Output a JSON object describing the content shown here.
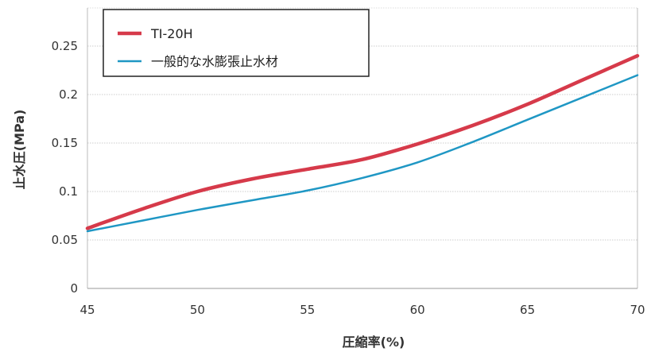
{
  "chart_data": {
    "type": "line",
    "xlabel": "圧縮率(%)",
    "ylabel": "止水圧(MPa)",
    "xlim": [
      45,
      70
    ],
    "ylim": [
      0,
      0.25
    ],
    "x_ticks": [
      "45",
      "50",
      "55",
      "60",
      "65",
      "70"
    ],
    "y_ticks": [
      "0",
      "0.05",
      "0.1",
      "0.15",
      "0.2",
      "0.25"
    ],
    "grid": "horizontal",
    "legend_position": "top-left",
    "series": [
      {
        "name": "TI-20H",
        "color": "#d63a4a",
        "x": [
          45,
          47.5,
          50,
          52.5,
          55,
          57.5,
          60,
          62.5,
          65,
          67.5,
          70
        ],
        "y": [
          0.062,
          0.082,
          0.1,
          0.113,
          0.123,
          0.133,
          0.149,
          0.168,
          0.19,
          0.215,
          0.24
        ]
      },
      {
        "name": "一般的な水膨張止水材",
        "color": "#1f97c4",
        "x": [
          45,
          47.5,
          50,
          52.5,
          55,
          57.5,
          60,
          62.5,
          65,
          67.5,
          70
        ],
        "y": [
          0.059,
          0.07,
          0.081,
          0.091,
          0.101,
          0.114,
          0.13,
          0.151,
          0.174,
          0.197,
          0.22
        ]
      }
    ]
  }
}
